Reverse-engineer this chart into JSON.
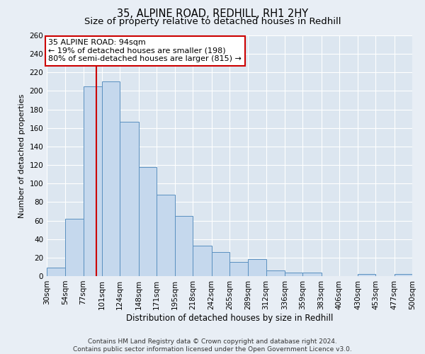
{
  "title": "35, ALPINE ROAD, REDHILL, RH1 2HY",
  "subtitle": "Size of property relative to detached houses in Redhill",
  "xlabel": "Distribution of detached houses by size in Redhill",
  "ylabel": "Number of detached properties",
  "bar_color": "#c5d8ed",
  "bar_edge_color": "#5a90c0",
  "background_color": "#e8eef5",
  "plot_bg_color": "#dce6f0",
  "grid_color": "#ffffff",
  "property_value": 94,
  "vline_color": "#cc0000",
  "annotation_line1": "35 ALPINE ROAD: 94sqm",
  "annotation_line2": "← 19% of detached houses are smaller (198)",
  "annotation_line3": "80% of semi-detached houses are larger (815) →",
  "annotation_box_color": "#ffffff",
  "annotation_box_edge": "#cc0000",
  "bin_edges": [
    30,
    54,
    77,
    101,
    124,
    148,
    171,
    195,
    218,
    242,
    265,
    289,
    312,
    336,
    359,
    383,
    406,
    430,
    453,
    477,
    500
  ],
  "bar_heights": [
    9,
    62,
    205,
    210,
    167,
    118,
    88,
    65,
    33,
    26,
    15,
    18,
    6,
    4,
    4,
    0,
    0,
    2,
    0,
    2
  ],
  "ylim": [
    0,
    260
  ],
  "yticks": [
    0,
    20,
    40,
    60,
    80,
    100,
    120,
    140,
    160,
    180,
    200,
    220,
    240,
    260
  ],
  "footer_text": "Contains HM Land Registry data © Crown copyright and database right 2024.\nContains public sector information licensed under the Open Government Licence v3.0.",
  "title_fontsize": 10.5,
  "subtitle_fontsize": 9.5,
  "xlabel_fontsize": 8.5,
  "ylabel_fontsize": 8,
  "tick_fontsize": 7.5,
  "footer_fontsize": 6.5
}
